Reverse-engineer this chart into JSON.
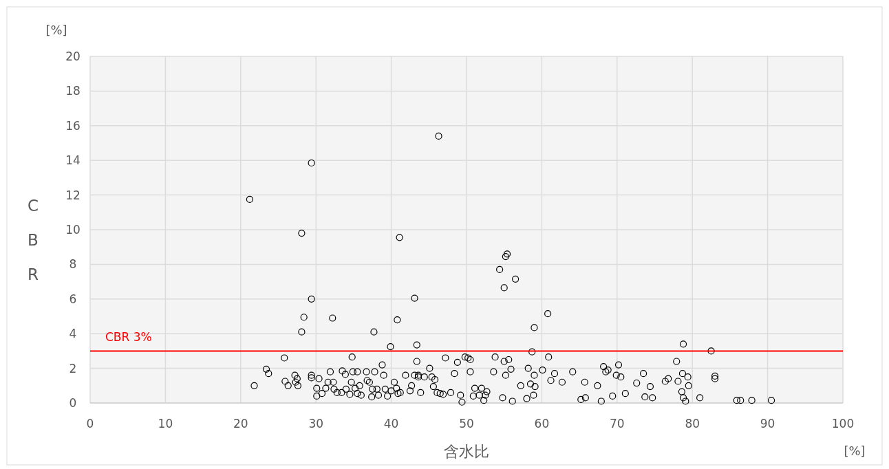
{
  "chart_data": {
    "type": "scatter",
    "xlabel": "含水比",
    "ylabel": "CBR",
    "annotations": [
      "[%]",
      "[%]"
    ],
    "x": [
      46.3,
      29.4,
      21.2,
      28.1,
      41.1,
      55.4,
      55.2,
      54.4,
      56.5,
      55.0,
      29.4,
      43.1,
      60.8,
      28.4,
      32.2,
      40.8,
      59.0,
      28.1,
      37.7,
      39.9,
      43.4,
      78.8,
      82.5,
      58.7,
      25.8,
      23.4,
      23.7,
      21.8,
      25.9,
      26.3,
      27.2,
      27.5,
      27.3,
      27.6,
      29.4,
      29.4,
      30.4,
      30.1,
      30.1,
      30.8,
      31.3,
      31.6,
      31.9,
      32.3,
      32.4,
      32.8,
      33.4,
      33.5,
      33.9,
      34.0,
      34.5,
      34.8,
      34.7,
      34.9,
      35.5,
      35.2,
      35.5,
      35.8,
      36.0,
      36.7,
      36.8,
      37.1,
      37.5,
      37.4,
      37.8,
      38.1,
      38.3,
      38.8,
      39.0,
      39.2,
      39.5,
      40.0,
      40.4,
      40.7,
      40.9,
      41.2,
      41.9,
      42.5,
      42.7,
      43.1,
      43.4,
      43.6,
      43.6,
      43.9,
      44.4,
      45.1,
      45.4,
      45.6,
      45.8,
      46.1,
      46.5,
      46.9,
      47.2,
      47.9,
      48.4,
      48.8,
      49.2,
      49.4,
      49.8,
      50.2,
      50.5,
      50.5,
      50.9,
      51.1,
      51.7,
      52.0,
      52.3,
      52.5,
      52.7,
      53.6,
      53.8,
      55.0,
      55.2,
      55.6,
      55.9,
      56.1,
      54.8,
      57.2,
      58.0,
      58.2,
      58.5,
      59.0,
      59.1,
      58.9,
      60.1,
      60.9,
      61.2,
      61.7,
      62.7,
      64.1,
      65.2,
      65.8,
      65.7,
      67.4,
      67.9,
      68.2,
      68.5,
      68.8,
      69.4,
      69.9,
      70.2,
      70.5,
      71.1,
      72.6,
      73.5,
      73.7,
      74.4,
      74.7,
      76.4,
      76.8,
      77.9,
      78.1,
      78.7,
      78.6,
      78.8,
      79.1,
      79.4,
      79.5,
      81.0,
      83.0,
      83.0,
      85.9,
      86.4,
      87.9,
      90.5
    ],
    "values": [
      15.4,
      13.85,
      11.75,
      9.8,
      9.55,
      8.6,
      8.45,
      7.7,
      7.15,
      6.65,
      6.0,
      6.05,
      5.15,
      4.95,
      4.9,
      4.8,
      4.35,
      4.1,
      4.1,
      3.25,
      3.35,
      3.4,
      3.0,
      2.95,
      2.6,
      1.95,
      1.7,
      1.0,
      1.25,
      1.0,
      1.6,
      1.4,
      1.2,
      1.0,
      1.45,
      1.6,
      1.4,
      0.85,
      0.4,
      0.55,
      0.85,
      1.2,
      1.8,
      1.2,
      0.8,
      0.6,
      0.6,
      1.85,
      1.65,
      0.8,
      0.5,
      2.65,
      1.2,
      1.8,
      1.8,
      0.85,
      0.55,
      1.0,
      0.45,
      1.8,
      1.3,
      1.2,
      0.8,
      0.35,
      1.8,
      0.8,
      0.45,
      2.2,
      1.6,
      0.8,
      0.4,
      0.7,
      1.2,
      0.85,
      0.55,
      0.6,
      1.6,
      0.7,
      1.0,
      1.6,
      2.4,
      1.6,
      1.5,
      0.6,
      1.5,
      2.0,
      1.5,
      0.95,
      1.35,
      0.6,
      0.55,
      0.5,
      2.6,
      0.6,
      1.7,
      2.35,
      0.45,
      0.05,
      2.65,
      2.6,
      2.5,
      1.8,
      0.4,
      0.85,
      0.45,
      0.85,
      0.15,
      0.45,
      0.65,
      1.8,
      2.65,
      2.4,
      1.6,
      2.5,
      1.95,
      0.1,
      0.3,
      1.0,
      0.25,
      2.0,
      1.1,
      1.6,
      0.95,
      0.45,
      1.9,
      2.65,
      1.3,
      1.7,
      1.2,
      1.8,
      0.2,
      0.3,
      1.2,
      1.0,
      0.1,
      2.1,
      1.8,
      1.9,
      0.4,
      1.6,
      2.2,
      1.5,
      0.55,
      1.15,
      1.7,
      0.35,
      0.95,
      0.3,
      1.25,
      1.4,
      2.4,
      1.25,
      1.7,
      0.65,
      0.3,
      0.1,
      1.5,
      1.0,
      0.3,
      1.55,
      1.4,
      0.15,
      0.15,
      0.15,
      0.15
    ],
    "color": "#000000",
    "marker": "circle",
    "grid": true,
    "xlim": [
      0,
      100
    ],
    "ylim": [
      0,
      20
    ],
    "xticks": [
      0,
      10,
      20,
      30,
      40,
      50,
      60,
      70,
      80,
      90,
      100
    ],
    "yticks": [
      0,
      2,
      4,
      6,
      8,
      10,
      12,
      14,
      16,
      18,
      20
    ],
    "ref_lines": [
      {
        "axis": "y",
        "value": 3,
        "label": "CBR 3%",
        "color": "#ff0000"
      }
    ]
  }
}
